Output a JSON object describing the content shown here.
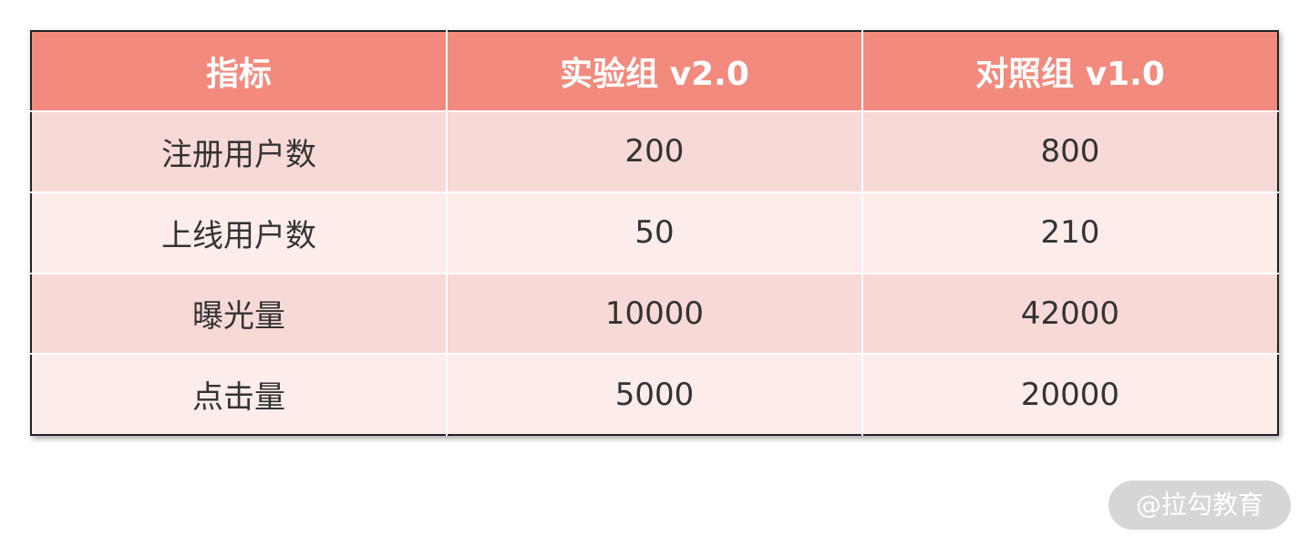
{
  "table": {
    "header": [
      "指标",
      "实验组 v2.0",
      "对照组 v1.0"
    ],
    "rows": [
      [
        "注册用户数",
        200,
        800
      ],
      [
        "上线用户数",
        50,
        210
      ],
      [
        "曝光量",
        10000,
        42000
      ],
      [
        "点击量",
        5000,
        20000
      ]
    ]
  },
  "watermark": "@拉勾教育"
}
